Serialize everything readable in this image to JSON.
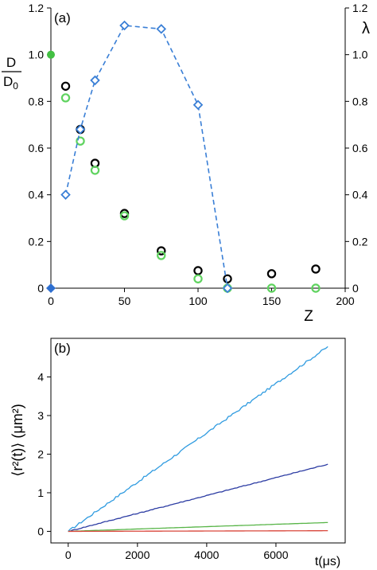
{
  "chart_data": [
    {
      "type": "scatter",
      "panel_label": "(a)",
      "xlabel": "Z",
      "ylabel_left": {
        "top": "D",
        "bottom": "D",
        "sub": "0"
      },
      "ylabel_right": "λ",
      "xlim": [
        0,
        200
      ],
      "ylim_left": [
        0,
        1.2
      ],
      "ylim_right": [
        0,
        1.2
      ],
      "x_ticks": [
        "0",
        "50",
        "100",
        "150",
        "200"
      ],
      "y_ticks_left": [
        "0",
        "0.2",
        "0.4",
        "0.6",
        "0.8",
        "1.0",
        "1.2"
      ],
      "y_ticks_right": [
        "0",
        "0.2",
        "0.4",
        "0.6",
        "0.8",
        "1.0",
        "1.2"
      ],
      "series": [
        {
          "marker": "circle-open",
          "color": "#000000",
          "points": [
            [
              10,
              0.865
            ],
            [
              20,
              0.68
            ],
            [
              30,
              0.535
            ],
            [
              50,
              0.32
            ],
            [
              75,
              0.16
            ],
            [
              100,
              0.075
            ],
            [
              120,
              0.04
            ],
            [
              150,
              0.062
            ],
            [
              180,
              0.082
            ]
          ]
        },
        {
          "marker": "circle-open",
          "color": "#5fd35f",
          "points": [
            [
              10,
              0.815
            ],
            [
              20,
              0.63
            ],
            [
              30,
              0.505
            ],
            [
              50,
              0.31
            ],
            [
              75,
              0.14
            ],
            [
              100,
              0.04
            ],
            [
              120,
              0.0
            ],
            [
              150,
              0.0
            ],
            [
              180,
              0.0
            ]
          ]
        },
        {
          "marker": "diamond-open-dashed-line",
          "color": "#3a7fd6",
          "axis": "right",
          "points": [
            [
              10,
              0.4
            ],
            [
              20,
              0.68
            ],
            [
              30,
              0.89
            ],
            [
              50,
              1.125
            ],
            [
              75,
              1.11
            ],
            [
              100,
              0.785
            ],
            [
              120,
              0.0
            ]
          ]
        }
      ],
      "special_points": [
        {
          "x": 0,
          "y": 1.0,
          "marker": "circle-filled",
          "color": "#43c043"
        },
        {
          "x": 0,
          "y": 0.0,
          "marker": "diamond-filled",
          "color": "#2e6fd0"
        }
      ]
    },
    {
      "type": "line",
      "panel_label": "(b)",
      "xlabel": "t(μs)",
      "ylabel": "⟨r²(t)⟩ (μm²)",
      "xlim": [
        -500,
        8000
      ],
      "ylim": [
        -0.3,
        5.0
      ],
      "x_ticks": [
        "0",
        "2000",
        "4000",
        "6000"
      ],
      "y_ticks": [
        "0",
        "1",
        "2",
        "3",
        "4"
      ],
      "series": [
        {
          "color": "#2f9be0",
          "x": [
            0,
            7500
          ],
          "slope": 0.000638
        },
        {
          "color": "#2c3ca3",
          "x": [
            0,
            7500
          ],
          "slope": 0.000232
        },
        {
          "color": "#58b548",
          "x": [
            0,
            7500
          ],
          "slope": 3.05e-05
        },
        {
          "color": "#d9463a",
          "x": [
            0,
            7500
          ],
          "slope": 2.2e-06
        }
      ]
    }
  ]
}
